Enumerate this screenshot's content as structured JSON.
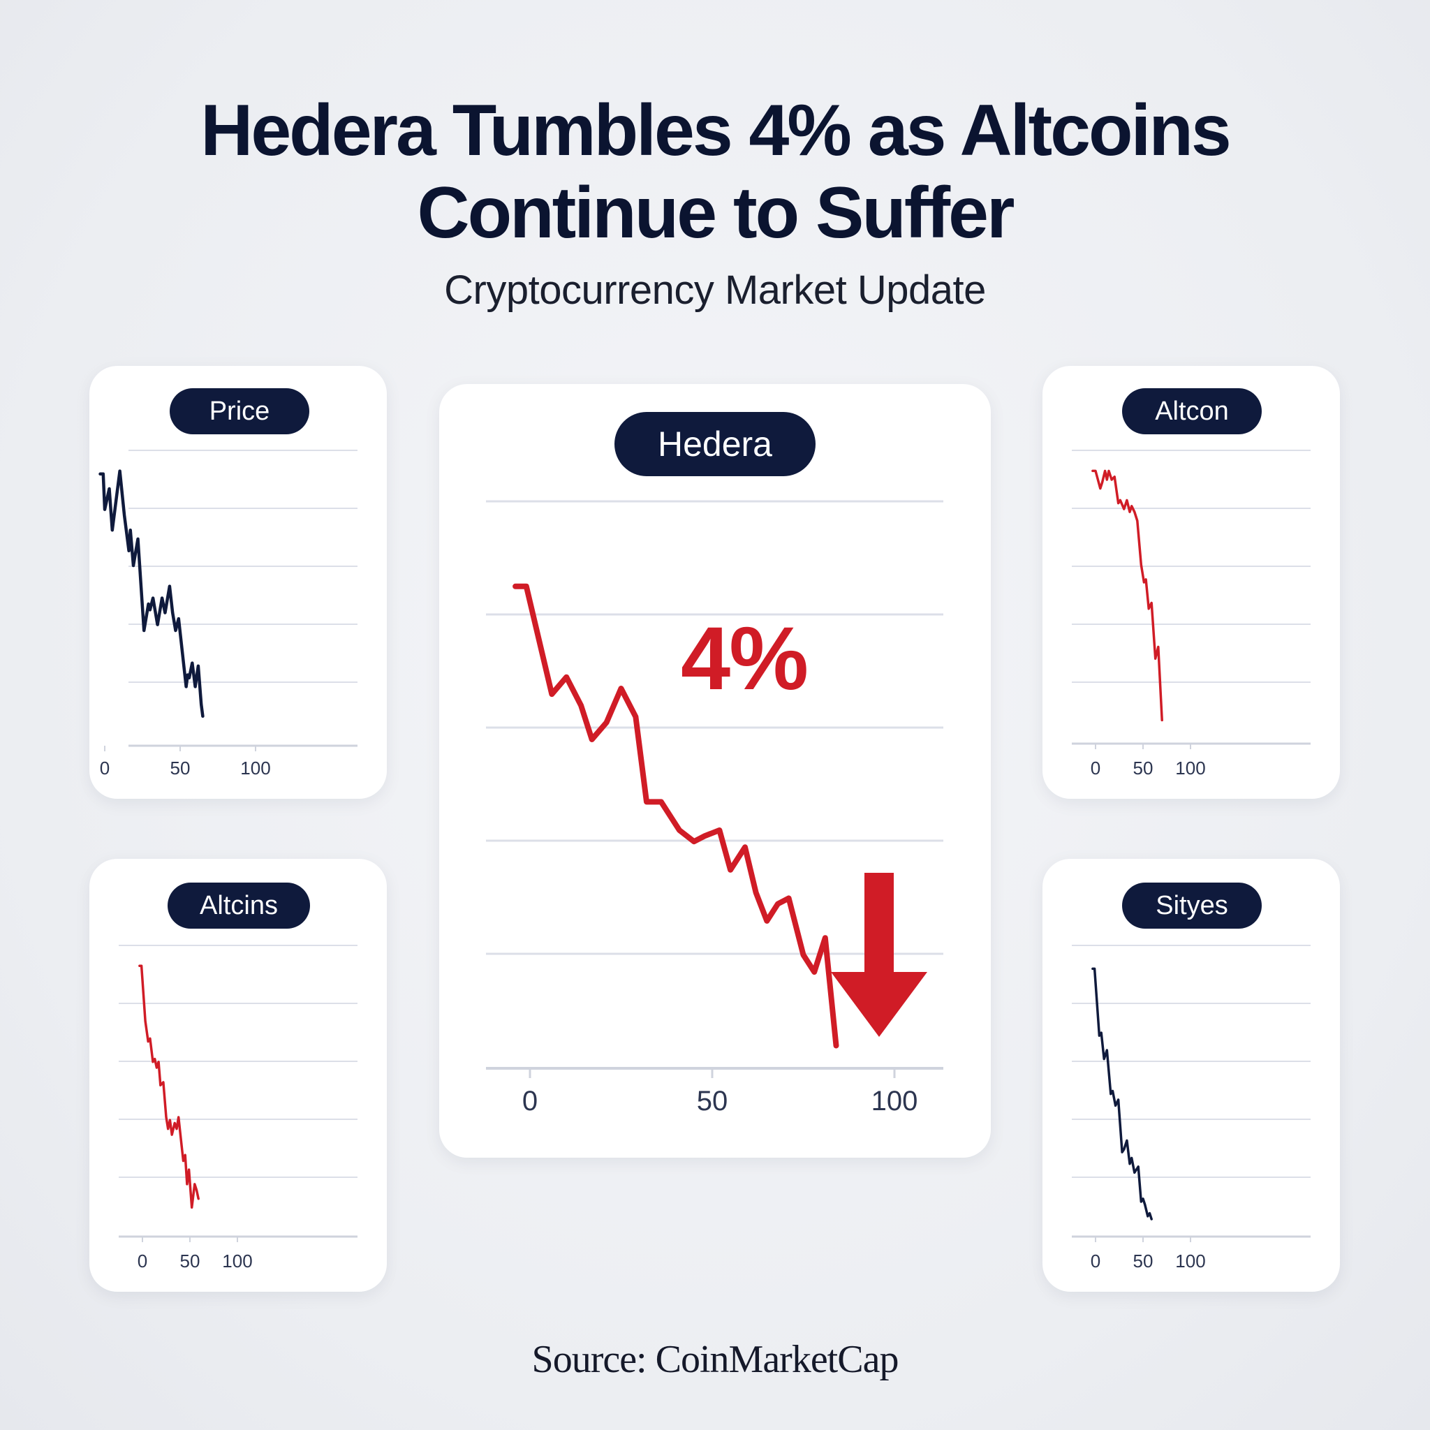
{
  "header": {
    "title_line1": "Hedera Tumbles 4% as Altcoins",
    "title_line2": "Continue to Suffer",
    "subtitle": "Cryptocurrency Market Update"
  },
  "footer": {
    "source": "Source: CoinMarketCap"
  },
  "colors": {
    "navy": "#0f1a3c",
    "red": "#d01c26",
    "grid": "#dcdfe8"
  },
  "chart_data": [
    {
      "id": "price",
      "type": "line",
      "title": "Price",
      "xlim": [
        0,
        100
      ],
      "ylim": [
        0,
        100
      ],
      "x_ticks": [
        "0",
        "50",
        "100"
      ],
      "color": "navy",
      "series": [
        {
          "values": [
            [
              -3,
              92
            ],
            [
              -1,
              92
            ],
            [
              0,
              80
            ],
            [
              3,
              87
            ],
            [
              5,
              73
            ],
            [
              10,
              93
            ],
            [
              13,
              78
            ],
            [
              16,
              66
            ],
            [
              17,
              73
            ],
            [
              19,
              61
            ],
            [
              22,
              70
            ],
            [
              26,
              39
            ],
            [
              29,
              48
            ],
            [
              30,
              46
            ],
            [
              32,
              50
            ],
            [
              35,
              41
            ],
            [
              38,
              50
            ],
            [
              40,
              45
            ],
            [
              43,
              54
            ],
            [
              45,
              45
            ],
            [
              47,
              39
            ],
            [
              49,
              43
            ],
            [
              54,
              20
            ],
            [
              55,
              24
            ],
            [
              56,
              23
            ],
            [
              58,
              28
            ],
            [
              60,
              20
            ],
            [
              62,
              27
            ],
            [
              64,
              14
            ],
            [
              65,
              10
            ]
          ]
        }
      ]
    },
    {
      "id": "altcin",
      "type": "line",
      "title": "Altcon",
      "xlim": [
        0,
        100
      ],
      "ylim": [
        0,
        100
      ],
      "x_ticks": [
        "0",
        "50",
        "100"
      ],
      "color": "red",
      "series": [
        {
          "values": [
            [
              -3,
              93
            ],
            [
              0,
              93
            ],
            [
              5,
              87
            ],
            [
              7,
              89
            ],
            [
              10,
              93
            ],
            [
              12,
              90
            ],
            [
              14,
              93
            ],
            [
              17,
              90
            ],
            [
              20,
              91
            ],
            [
              24,
              82
            ],
            [
              26,
              83
            ],
            [
              30,
              80
            ],
            [
              33,
              83
            ],
            [
              36,
              79
            ],
            [
              38,
              81
            ],
            [
              41,
              79
            ],
            [
              44,
              76
            ],
            [
              48,
              61
            ],
            [
              51,
              55
            ],
            [
              53,
              56
            ],
            [
              56,
              46
            ],
            [
              59,
              48
            ],
            [
              63,
              29
            ],
            [
              66,
              33
            ],
            [
              70,
              8
            ]
          ]
        }
      ]
    },
    {
      "id": "altcins",
      "type": "line",
      "title": "Altcins",
      "xlim": [
        0,
        100
      ],
      "ylim": [
        0,
        100
      ],
      "x_ticks": [
        "0",
        "50",
        "100"
      ],
      "color": "red",
      "series": [
        {
          "values": [
            [
              -3,
              93
            ],
            [
              -1,
              93
            ],
            [
              3,
              74
            ],
            [
              6,
              67
            ],
            [
              8,
              68
            ],
            [
              11,
              60
            ],
            [
              13,
              61
            ],
            [
              15,
              58
            ],
            [
              17,
              60
            ],
            [
              19,
              52
            ],
            [
              22,
              53
            ],
            [
              25,
              41
            ],
            [
              27,
              37
            ],
            [
              29,
              40
            ],
            [
              31,
              35
            ],
            [
              34,
              39
            ],
            [
              36,
              37
            ],
            [
              38,
              41
            ],
            [
              40,
              35
            ],
            [
              43,
              26
            ],
            [
              45,
              28
            ],
            [
              47,
              18
            ],
            [
              49,
              23
            ],
            [
              52,
              10
            ],
            [
              55,
              18
            ],
            [
              57,
              16
            ],
            [
              59,
              13
            ]
          ]
        }
      ]
    },
    {
      "id": "sityes",
      "type": "line",
      "title": "Sityes",
      "xlim": [
        0,
        100
      ],
      "ylim": [
        0,
        100
      ],
      "x_ticks": [
        "0",
        "50",
        "100"
      ],
      "color": "navy",
      "series": [
        {
          "values": [
            [
              -3,
              92
            ],
            [
              -1,
              92
            ],
            [
              4,
              69
            ],
            [
              6,
              70
            ],
            [
              9,
              61
            ],
            [
              12,
              64
            ],
            [
              16,
              49
            ],
            [
              18,
              50
            ],
            [
              21,
              45
            ],
            [
              24,
              47
            ],
            [
              28,
              29
            ],
            [
              30,
              30
            ],
            [
              33,
              33
            ],
            [
              36,
              25
            ],
            [
              38,
              27
            ],
            [
              41,
              22
            ],
            [
              45,
              24
            ],
            [
              48,
              12
            ],
            [
              50,
              13
            ],
            [
              52,
              11
            ],
            [
              55,
              7
            ],
            [
              57,
              8
            ],
            [
              59,
              6
            ]
          ]
        }
      ]
    },
    {
      "id": "hedera",
      "type": "line",
      "title": "Hedera",
      "xlim": [
        0,
        100
      ],
      "ylim": [
        0,
        100
      ],
      "x_ticks": [
        "0",
        "50",
        "100"
      ],
      "color": "red",
      "annotation": "4%",
      "series": [
        {
          "values": [
            [
              -4,
              85
            ],
            [
              -1,
              85
            ],
            [
              6,
              66
            ],
            [
              10,
              69
            ],
            [
              14,
              64
            ],
            [
              17,
              58
            ],
            [
              21,
              61
            ],
            [
              25,
              67
            ],
            [
              29,
              62
            ],
            [
              32,
              47
            ],
            [
              36,
              47
            ],
            [
              41,
              42
            ],
            [
              45,
              40
            ],
            [
              48,
              41
            ],
            [
              52,
              42
            ],
            [
              55,
              35
            ],
            [
              59,
              39
            ],
            [
              62,
              31
            ],
            [
              65,
              26
            ],
            [
              68,
              29
            ],
            [
              71,
              30
            ],
            [
              75,
              20
            ],
            [
              78,
              17
            ],
            [
              81,
              23
            ],
            [
              84,
              4
            ]
          ]
        }
      ]
    }
  ]
}
